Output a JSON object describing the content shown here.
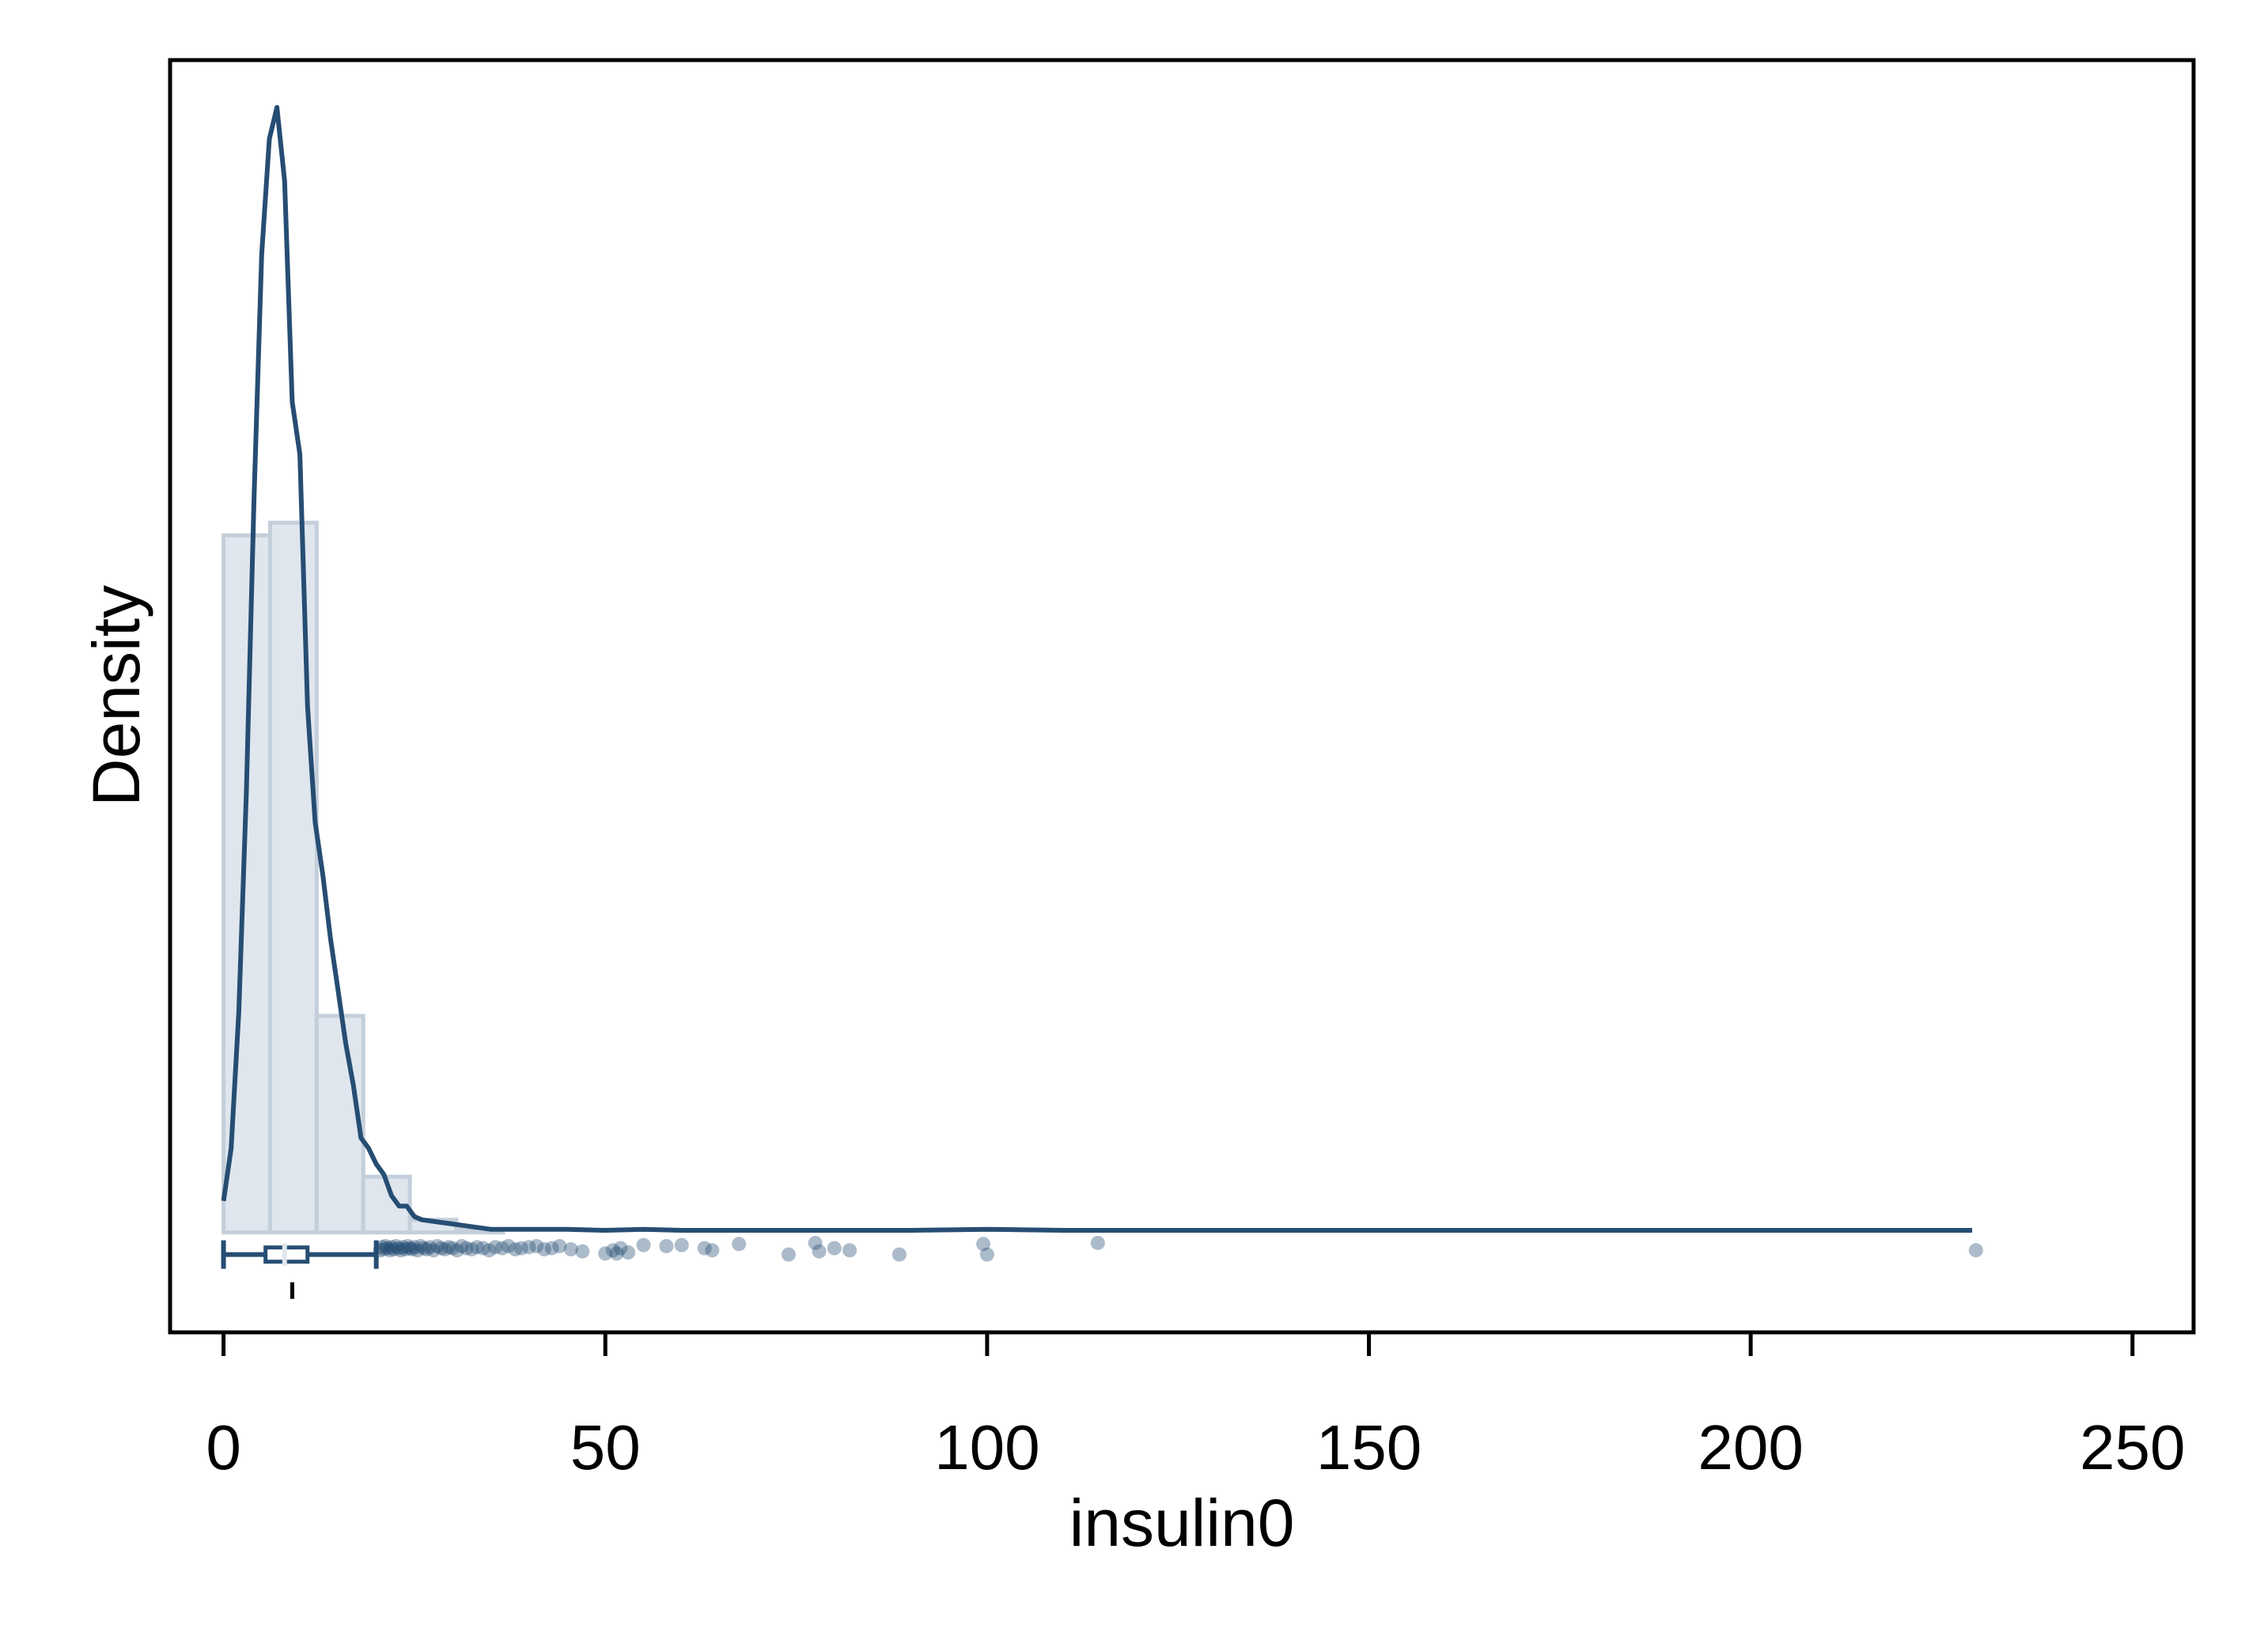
{
  "chart_data": {
    "type": "histogram-density-boxplot",
    "xlabel": "insulin0",
    "ylabel": "Density",
    "xlim": [
      -7,
      258
    ],
    "xticks": [
      0,
      50,
      100,
      150,
      200,
      250
    ],
    "xtick_labels": [
      "0",
      "50",
      "100",
      "150",
      "200",
      "250"
    ],
    "yticks_shown": false,
    "grid": false,
    "colors": {
      "line": "#264d73",
      "bar_fill": "#dfe6ed",
      "bar_edge": "#c3cfda",
      "point": "#264d73",
      "axis": "#000000"
    },
    "histogram": {
      "bin_edges": [
        0,
        6.1,
        12.2,
        18.3,
        24.4,
        30.5,
        36.6
      ],
      "density": [
        0.0663,
        0.0675,
        0.0206,
        0.0053,
        0.0012,
        0.0003
      ]
    },
    "density_curve": {
      "x": [
        0,
        1,
        2,
        3,
        4,
        5,
        6,
        7,
        8,
        9,
        10,
        11,
        12,
        13,
        14,
        15,
        16,
        17,
        18,
        19,
        20,
        21,
        22,
        23,
        24,
        25,
        26,
        28,
        30,
        32,
        35,
        38,
        40,
        45,
        50,
        55,
        60,
        70,
        80,
        90,
        100,
        110,
        115,
        120,
        150,
        200,
        229
      ],
      "y": [
        0.003,
        0.008,
        0.021,
        0.042,
        0.07,
        0.093,
        0.104,
        0.107,
        0.1,
        0.079,
        0.074,
        0.05,
        0.039,
        0.034,
        0.028,
        0.023,
        0.018,
        0.014,
        0.009,
        0.008,
        0.0065,
        0.0055,
        0.0035,
        0.0025,
        0.0025,
        0.0015,
        0.0012,
        0.001,
        0.0008,
        0.0006,
        0.0003,
        0.0003,
        0.0003,
        0.0003,
        0.0002,
        0.0003,
        0.0002,
        0.0002,
        0.0002,
        0.0002,
        0.0003,
        0.0002,
        0.0002,
        0.0002,
        0.0002,
        0.0002,
        0.0002
      ]
    },
    "ylim": [
      -0.0095,
      0.1115
    ],
    "boxplot": {
      "whisker_low": 0,
      "q1": 5.5,
      "median": 8.0,
      "q3": 11.0,
      "whisker_high": 20.0,
      "mean": 9.0,
      "outliers": [
        20.5,
        20.8,
        21.0,
        21.2,
        21.5,
        21.8,
        22.0,
        22.3,
        22.6,
        22.9,
        23.2,
        23.5,
        23.8,
        24.1,
        24.4,
        24.7,
        25.0,
        25.4,
        25.8,
        26.2,
        26.6,
        27.0,
        27.5,
        28.0,
        28.5,
        29.0,
        29.5,
        30.0,
        30.6,
        31.2,
        31.8,
        32.5,
        33.2,
        34.0,
        34.8,
        35.6,
        36.5,
        37.3,
        38.2,
        39.0,
        40.0,
        41.0,
        42.0,
        43.0,
        44.0,
        45.5,
        47.0,
        50.0,
        51.0,
        51.5,
        52.0,
        53.0,
        55.0,
        58.0,
        60.0,
        63.0,
        64.0,
        67.5,
        74.0,
        77.5,
        78.0,
        80.0,
        82.0,
        88.5,
        99.5,
        100.0,
        114.5,
        229.5
      ],
      "outlier_offsets": [
        -0.0002,
        0.0001,
        -0.0001,
        0.0002,
        0.0,
        -0.0002,
        0.0001,
        -0.0001,
        0.0002,
        0.0,
        -0.0002,
        0.0001,
        -0.0001,
        0.0002,
        0.0,
        -0.0001,
        0.0001,
        -0.0002,
        0.0002,
        0.0,
        -0.0001,
        0.0001,
        -0.0002,
        0.0002,
        0.0,
        -0.0001,
        0.0001,
        0.0,
        -0.0002,
        0.0002,
        0.0,
        -0.0001,
        0.0001,
        0.0,
        -0.0002,
        0.0001,
        0.0,
        0.0002,
        -0.0001,
        0.0,
        0.0001,
        0.0002,
        -0.0001,
        0.0,
        0.0002,
        -0.0001,
        -0.0003,
        -0.0005,
        -0.0002,
        -0.0005,
        0.0,
        -0.0004,
        0.0003,
        0.0002,
        0.0003,
        0.0,
        -0.0002,
        0.0004,
        -0.0006,
        0.0005,
        -0.0003,
        0.0,
        -0.0002,
        -0.0006,
        0.0004,
        -0.0006,
        0.0005,
        -0.0002
      ]
    }
  }
}
